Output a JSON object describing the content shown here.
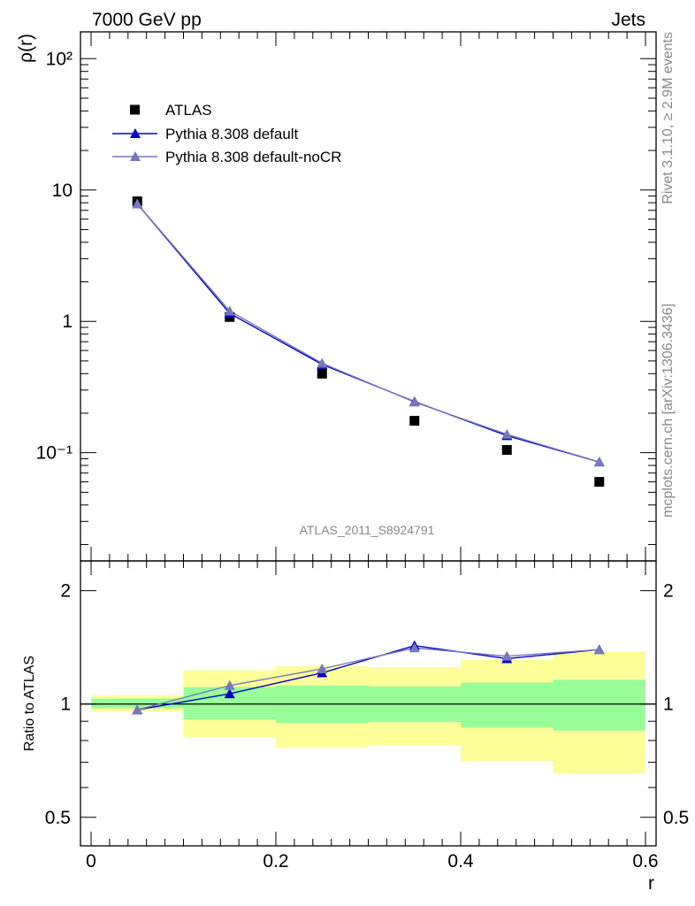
{
  "header": {
    "left": "7000 GeV pp",
    "right": "Jets"
  },
  "side_text": {
    "top": "Rivet 3.1.10, ≥ 2.9M events",
    "bottom": "mcplots.cern.ch [arXiv:1306.3436]"
  },
  "analysis_label": "ATLAS_2011_S8924791",
  "colors": {
    "atlas": "#000000",
    "pythia_default": "#0000cc",
    "pythia_nocr": "#7777bb",
    "band_inner": "#99ff99",
    "band_outer": "#ffff99",
    "side_text": "#888888"
  },
  "chart_data": [
    {
      "type": "scatter",
      "panel": "main",
      "ylabel": "ρ(r)",
      "yscale": "log",
      "xlim": [
        0.0,
        0.6
      ],
      "ylim": [
        0.015,
        160
      ],
      "ytick_labels": [
        "10⁻¹",
        "1",
        "10",
        "10²"
      ],
      "legend_position": "top-left",
      "x": [
        0.05,
        0.15,
        0.25,
        0.35,
        0.45,
        0.55
      ],
      "series": [
        {
          "name": "ATLAS",
          "marker": "square",
          "values": [
            8.2,
            1.08,
            0.4,
            0.175,
            0.105,
            0.06
          ]
        },
        {
          "name": "Pythia 8.308 default",
          "marker": "triangle",
          "line": true,
          "values": [
            7.85,
            1.15,
            0.47,
            0.245,
            0.135,
            0.085
          ]
        },
        {
          "name": "Pythia 8.308 default-noCR",
          "marker": "triangle",
          "line": true,
          "values": [
            7.85,
            1.2,
            0.48,
            0.243,
            0.138,
            0.085
          ]
        }
      ]
    },
    {
      "type": "line",
      "panel": "ratio",
      "ylabel": "Ratio to ATLAS",
      "xlabel": "r",
      "yscale": "log",
      "xlim": [
        0.0,
        0.6
      ],
      "ylim": [
        0.42,
        2.4
      ],
      "xtick_labels": [
        "0",
        "0.2",
        "0.4",
        "0.6"
      ],
      "ytick_labels": [
        "0.5",
        "1",
        "2"
      ],
      "x_edges": [
        0.0,
        0.1,
        0.2,
        0.3,
        0.4,
        0.5,
        0.6
      ],
      "x": [
        0.05,
        0.15,
        0.25,
        0.35,
        0.45,
        0.55
      ],
      "bands": {
        "inner": [
          [
            0.975,
            1.035
          ],
          [
            0.91,
            1.11
          ],
          [
            0.89,
            1.12
          ],
          [
            0.895,
            1.115
          ],
          [
            0.865,
            1.14
          ],
          [
            0.85,
            1.16
          ]
        ],
        "outer": [
          [
            0.955,
            1.055
          ],
          [
            0.815,
            1.23
          ],
          [
            0.765,
            1.26
          ],
          [
            0.775,
            1.25
          ],
          [
            0.705,
            1.31
          ],
          [
            0.655,
            1.38
          ]
        ]
      },
      "series": [
        {
          "name": "Pythia 8.308 default",
          "values": [
            0.965,
            1.065,
            1.21,
            1.43,
            1.32,
            1.395
          ]
        },
        {
          "name": "Pythia 8.308 default-noCR",
          "values": [
            0.965,
            1.12,
            1.24,
            1.41,
            1.34,
            1.395
          ]
        }
      ]
    }
  ]
}
